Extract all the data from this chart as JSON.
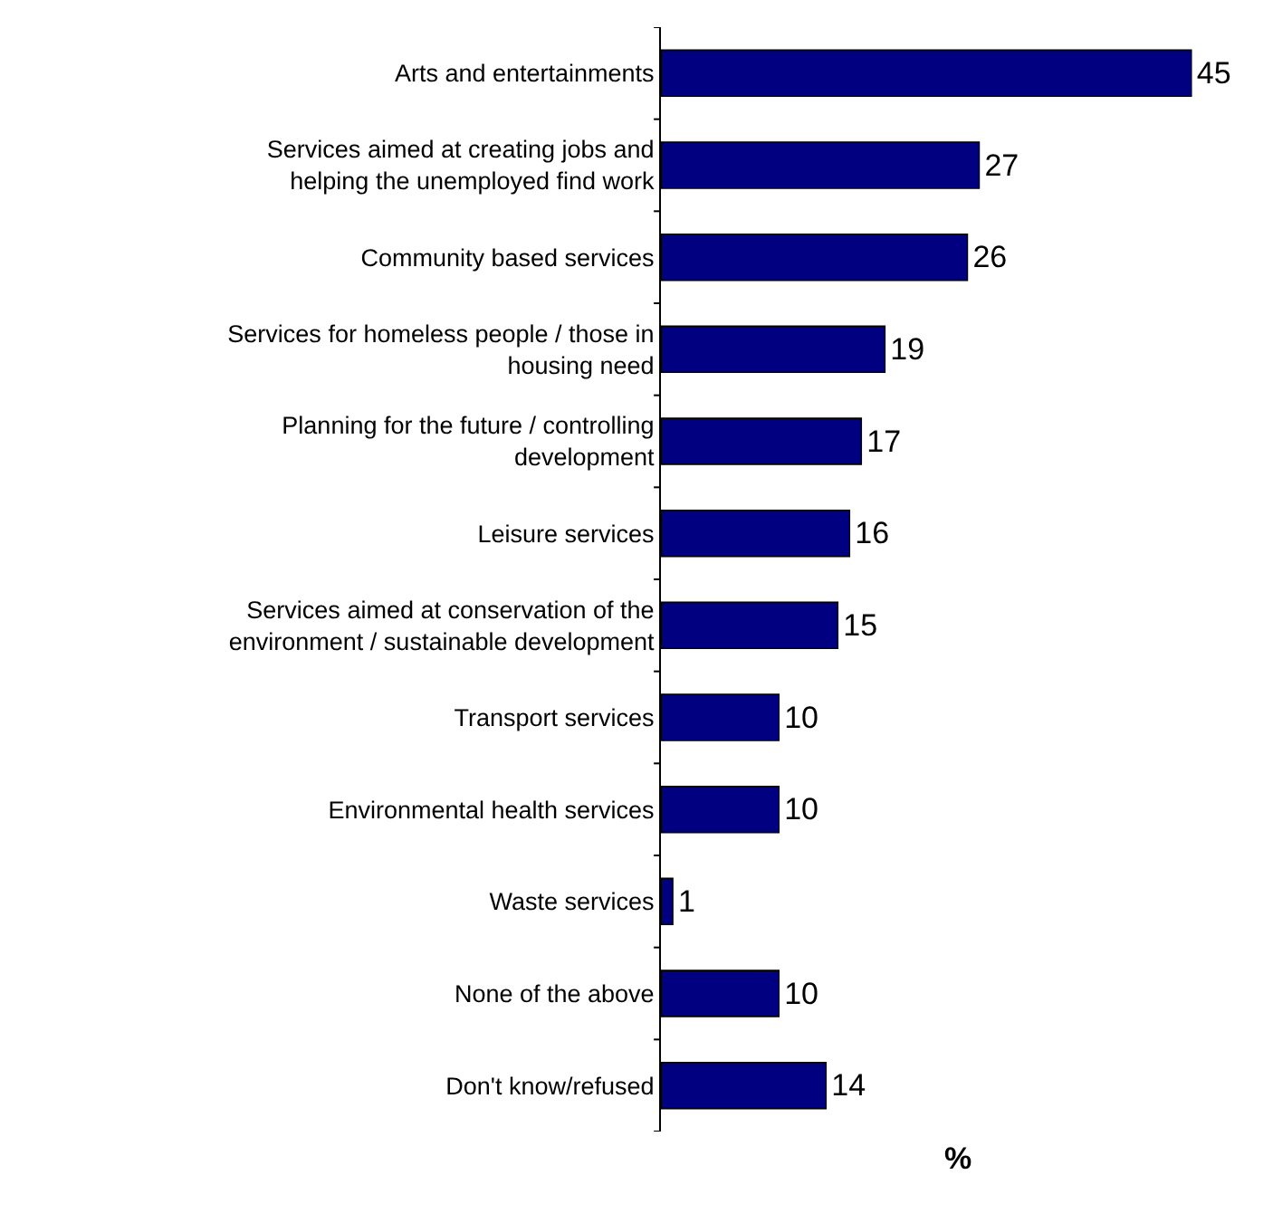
{
  "chart_data": {
    "type": "bar",
    "orientation": "horizontal",
    "xlabel": "%",
    "categories": [
      "Arts and entertainments",
      "Services aimed at creating jobs and helping the unemployed find work",
      "Community based services",
      "Services for homeless people / those in housing need",
      "Planning for the future / controlling development",
      "Leisure services",
      "Services aimed at conservation of the environment / sustainable development",
      "Transport services",
      "Environmental health services",
      "Waste services",
      "None of the above",
      "Don't know/refused"
    ],
    "values": [
      45,
      27,
      26,
      19,
      17,
      16,
      15,
      10,
      10,
      1,
      10,
      14
    ],
    "color": "#000080",
    "data_labels": true,
    "legend": false
  }
}
